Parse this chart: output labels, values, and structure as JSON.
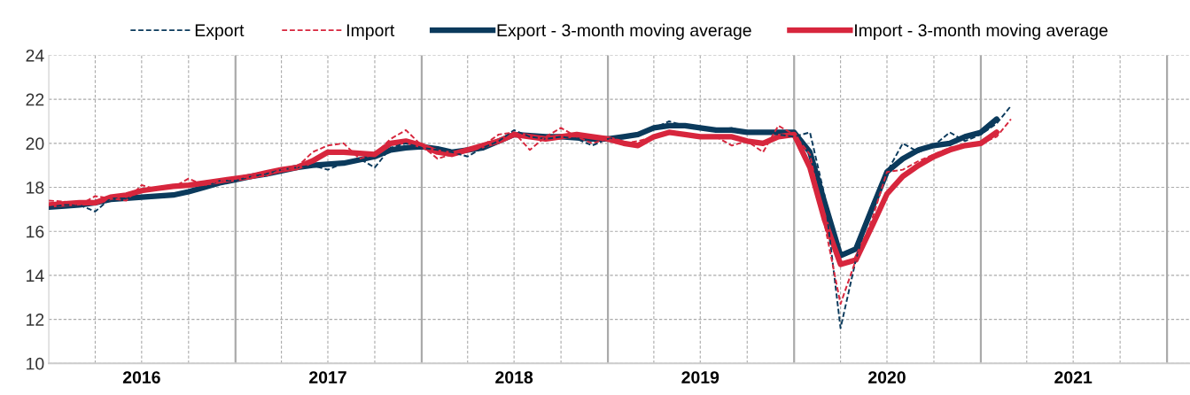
{
  "chart_data": {
    "type": "line",
    "x": [
      "2016-01",
      "2016-02",
      "2016-03",
      "2016-04",
      "2016-05",
      "2016-06",
      "2016-07",
      "2016-08",
      "2016-09",
      "2016-10",
      "2016-11",
      "2016-12",
      "2017-01",
      "2017-02",
      "2017-03",
      "2017-04",
      "2017-05",
      "2017-06",
      "2017-07",
      "2017-08",
      "2017-09",
      "2017-10",
      "2017-11",
      "2017-12",
      "2018-01",
      "2018-02",
      "2018-03",
      "2018-04",
      "2018-05",
      "2018-06",
      "2018-07",
      "2018-08",
      "2018-09",
      "2018-10",
      "2018-11",
      "2018-12",
      "2019-01",
      "2019-02",
      "2019-03",
      "2019-04",
      "2019-05",
      "2019-06",
      "2019-07",
      "2019-08",
      "2019-09",
      "2019-10",
      "2019-11",
      "2019-12",
      "2020-01",
      "2020-02",
      "2020-03",
      "2020-04",
      "2020-05",
      "2020-06",
      "2020-07",
      "2020-08",
      "2020-09",
      "2020-10",
      "2020-11",
      "2020-12",
      "2021-01",
      "2021-02",
      "2021-03"
    ],
    "series": [
      {
        "name": "Export",
        "color": "#0b3a5c",
        "line_style": "dashed",
        "values": [
          17.1,
          17.2,
          17.2,
          16.9,
          17.5,
          17.5,
          17.6,
          17.6,
          17.7,
          17.8,
          18.0,
          18.3,
          18.3,
          18.5,
          18.6,
          18.8,
          18.9,
          19.0,
          18.8,
          19.1,
          19.3,
          18.9,
          19.8,
          20.0,
          19.8,
          19.7,
          19.6,
          19.4,
          19.8,
          20.1,
          20.6,
          20.3,
          20.2,
          20.3,
          20.2,
          19.9,
          20.2,
          20.3,
          20.4,
          20.7,
          21.0,
          20.8,
          20.7,
          20.6,
          20.7,
          20.5,
          20.5,
          20.4,
          20.3,
          20.5,
          17.6,
          11.6,
          14.7,
          17.2,
          18.7,
          20.0,
          19.6,
          19.9,
          20.5,
          20.1,
          20.4,
          20.9,
          21.7
        ]
      },
      {
        "name": "Import",
        "color": "#d7263d",
        "line_style": "dashed",
        "values": [
          17.4,
          17.35,
          17.2,
          17.6,
          17.5,
          17.4,
          18.1,
          17.9,
          18.0,
          18.4,
          18.1,
          18.3,
          18.4,
          18.5,
          18.5,
          18.8,
          18.9,
          19.6,
          19.9,
          20.0,
          19.3,
          19.5,
          20.2,
          20.6,
          19.9,
          19.3,
          19.5,
          19.7,
          19.9,
          20.4,
          20.5,
          19.7,
          20.3,
          20.7,
          20.3,
          20.0,
          20.2,
          20.0,
          20.1,
          20.3,
          20.5,
          20.4,
          20.3,
          20.3,
          19.9,
          20.1,
          19.6,
          20.8,
          20.4,
          19.5,
          16.3,
          12.7,
          14.7,
          16.5,
          18.7,
          18.8,
          19.2,
          19.5,
          19.8,
          19.9,
          20.0,
          20.3,
          21.1
        ]
      },
      {
        "name": "Export - 3-month moving average",
        "color": "#0b3a5c",
        "line_style": "solid",
        "values": [
          17.1,
          17.15,
          17.2,
          17.3,
          17.45,
          17.5,
          17.55,
          17.6,
          17.65,
          17.8,
          18.0,
          18.2,
          18.35,
          18.5,
          18.6,
          18.75,
          18.9,
          19.0,
          19.05,
          19.1,
          19.25,
          19.4,
          19.7,
          19.8,
          19.85,
          19.75,
          19.6,
          19.7,
          19.8,
          20.1,
          20.4,
          20.35,
          20.3,
          20.3,
          20.25,
          20.2,
          20.2,
          20.3,
          20.4,
          20.7,
          20.8,
          20.8,
          20.7,
          20.6,
          20.6,
          20.5,
          20.5,
          20.5,
          20.5,
          19.6,
          17.3,
          14.9,
          15.2,
          17.0,
          18.7,
          19.3,
          19.7,
          19.9,
          20.0,
          20.3,
          20.5,
          21.1,
          null
        ]
      },
      {
        "name": "Import - 3-month moving average",
        "color": "#d7263d",
        "line_style": "solid",
        "values": [
          17.2,
          17.25,
          17.3,
          17.3,
          17.55,
          17.65,
          17.85,
          17.95,
          18.05,
          18.1,
          18.2,
          18.3,
          18.4,
          18.5,
          18.65,
          18.8,
          18.9,
          19.2,
          19.6,
          19.6,
          19.55,
          19.5,
          20.0,
          20.1,
          19.9,
          19.6,
          19.5,
          19.7,
          19.9,
          20.1,
          20.4,
          20.3,
          20.2,
          20.3,
          20.4,
          20.3,
          20.2,
          20.0,
          19.9,
          20.3,
          20.5,
          20.4,
          20.3,
          20.3,
          20.3,
          20.1,
          20.0,
          20.3,
          20.4,
          18.9,
          16.5,
          14.5,
          14.7,
          16.2,
          17.7,
          18.5,
          19.0,
          19.4,
          19.7,
          19.9,
          20.0,
          20.5,
          null
        ]
      }
    ],
    "xlim": [
      "2016-01-01",
      "2022-02-15"
    ],
    "xticks": [
      {
        "value": "2016-07-01",
        "label": "2016"
      },
      {
        "value": "2017-07-01",
        "label": "2017"
      },
      {
        "value": "2018-07-01",
        "label": "2018"
      },
      {
        "value": "2019-07-01",
        "label": "2019"
      },
      {
        "value": "2020-07-01",
        "label": "2020"
      },
      {
        "value": "2021-07-01",
        "label": "2021"
      }
    ],
    "ylim": [
      10,
      24
    ],
    "yticks": [
      10,
      12,
      14,
      16,
      18,
      20,
      22,
      24
    ],
    "grid": true,
    "legend": "top",
    "marker": "none"
  }
}
